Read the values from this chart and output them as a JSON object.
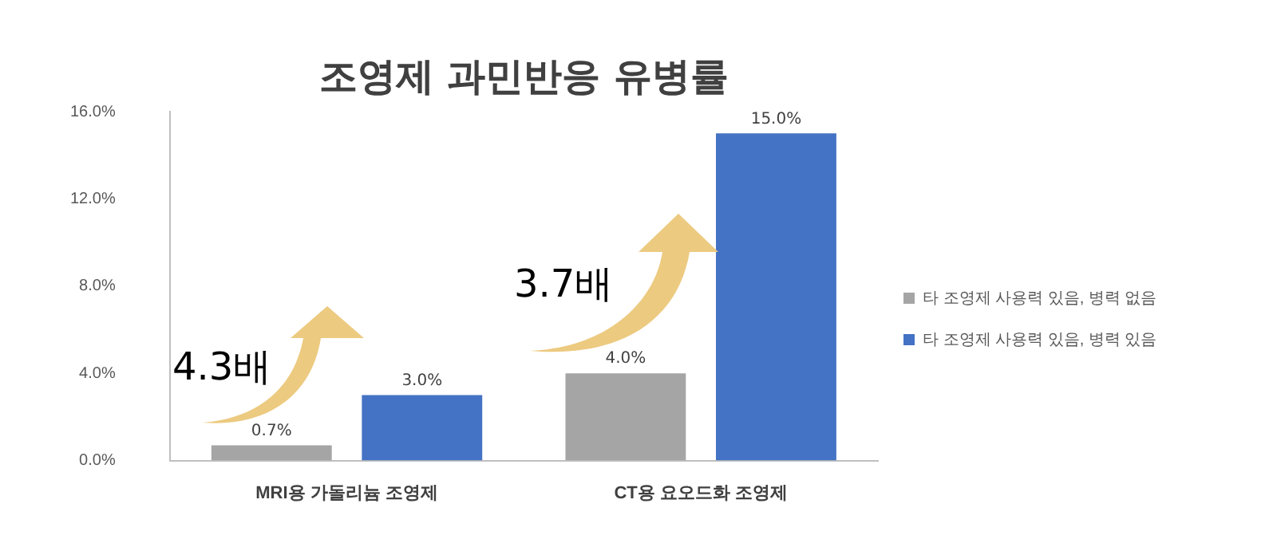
{
  "chart_data": {
    "type": "bar",
    "title": "조영제 과민반응 유병률",
    "categories": [
      "MRI용 가돌리늄 조영제",
      "CT용 요오드화 조영제"
    ],
    "series": [
      {
        "name": "타 조영제 사용력 있음, 병력 없음",
        "color": "#a5a5a5",
        "values": [
          0.7,
          4.0
        ],
        "value_labels": [
          "0.7%",
          "4.0%"
        ]
      },
      {
        "name": "타 조영제 사용력 있음, 병력 있음",
        "color": "#4472c4",
        "values": [
          3.0,
          15.0
        ],
        "value_labels": [
          "3.0%",
          "15.0%"
        ]
      }
    ],
    "ylim": [
      0,
      16
    ],
    "yticks": [
      {
        "value": 0,
        "label": "0.0%"
      },
      {
        "value": 4,
        "label": "4.0%"
      },
      {
        "value": 8,
        "label": "8.0%"
      },
      {
        "value": 12,
        "label": "12.0%"
      },
      {
        "value": 16,
        "label": "16.0%"
      }
    ],
    "grid": false,
    "legend": "right",
    "annotations": [
      "4.3배",
      "3.7배"
    ]
  }
}
